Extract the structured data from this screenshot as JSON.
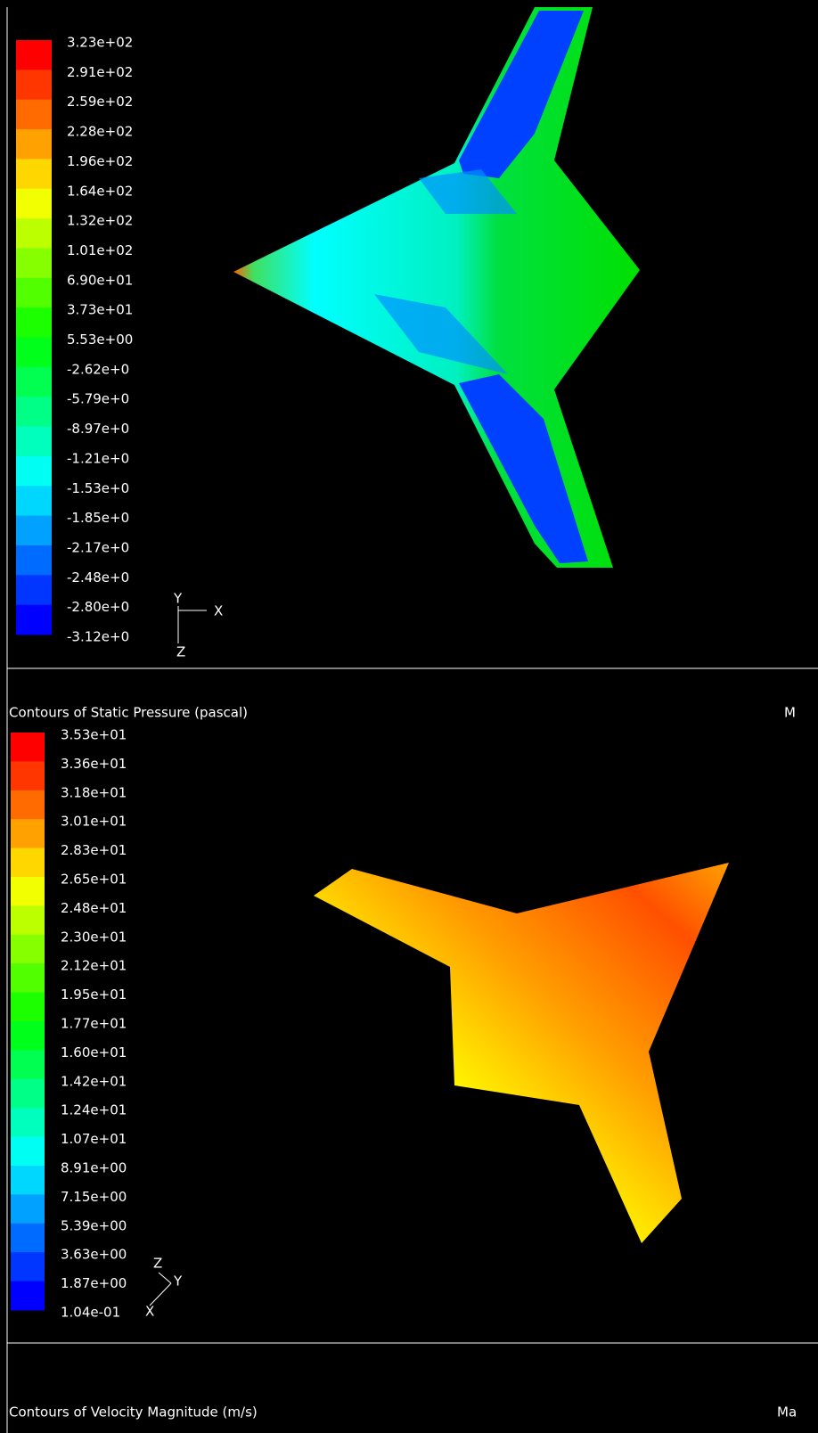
{
  "panels": [
    {
      "legend": [
        "3.23e+02",
        "2.91e+02",
        "2.59e+02",
        "2.28e+02",
        "1.96e+02",
        "1.64e+02",
        "1.32e+02",
        "1.01e+02",
        "6.90e+01",
        "3.73e+01",
        "5.53e+00",
        "-2.62e+0",
        "-5.79e+0",
        "-8.97e+0",
        "-1.21e+0",
        "-1.53e+0",
        "-1.85e+0",
        "-2.17e+0",
        "-2.48e+0",
        "-2.80e+0",
        "-3.12e+0"
      ],
      "axes": {
        "a": "Y",
        "b": "X",
        "c": "Z"
      },
      "caption": "Contours of Static Pressure (pascal)",
      "caption_right": "M"
    },
    {
      "legend": [
        "3.53e+01",
        "3.36e+01",
        "3.18e+01",
        "3.01e+01",
        "2.83e+01",
        "2.65e+01",
        "2.48e+01",
        "2.30e+01",
        "2.12e+01",
        "1.95e+01",
        "1.77e+01",
        "1.60e+01",
        "1.42e+01",
        "1.24e+01",
        "1.07e+01",
        "8.91e+00",
        "7.15e+00",
        "5.39e+00",
        "3.63e+00",
        "1.87e+00",
        "1.04e-01"
      ],
      "axes": {
        "a": "Z",
        "b": "Y",
        "c": "X"
      },
      "caption": "Contours of Velocity Magnitude (m/s)",
      "caption_right": "Ma"
    }
  ]
}
